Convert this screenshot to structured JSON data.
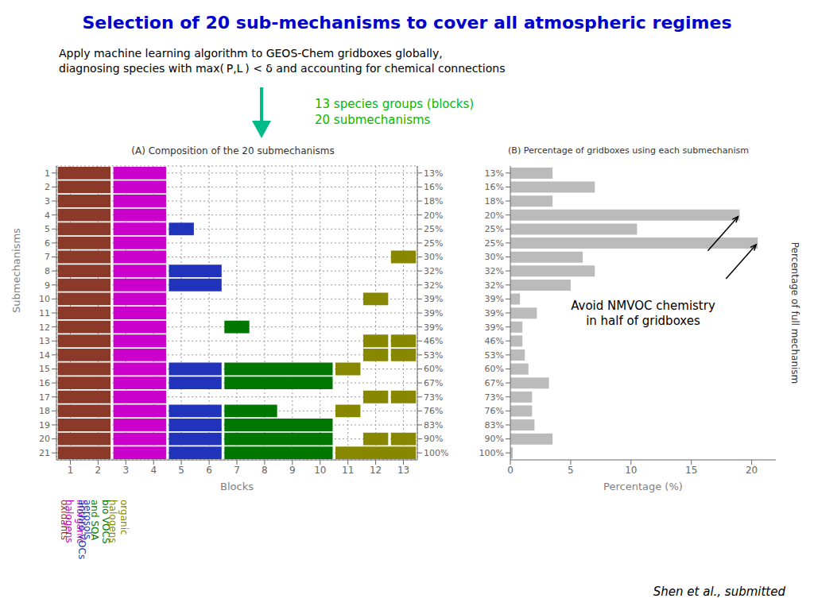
{
  "title": "Selection of 20 sub-mechanisms to cover all atmospheric regimes",
  "title_color": "#0000CC",
  "subtitle": "Apply machine learning algorithm to GEOS-Chem gridboxes globally,\ndiagnosing species with max( P,L ) < δ and accounting for chemical connections",
  "annotations": [
    {
      "text": "13 species groups (blocks)\n20 submechanisms",
      "color": "#00BB00",
      "arrow_color": "#00BB88"
    }
  ],
  "citation": "Shen et al., submitted",
  "chart_data": [
    {
      "type": "matrix",
      "title": "(A) Composition of the 20 submechanisms",
      "xlabel": "Blocks",
      "ylabel": "Submechanisms",
      "xlim": [
        0.5,
        13.5
      ],
      "xticks": [
        1,
        2,
        3,
        4,
        5,
        6,
        7,
        8,
        9,
        10,
        11,
        12,
        13
      ],
      "ylim": [
        0.5,
        21.5
      ],
      "yticks": [
        1,
        2,
        3,
        4,
        5,
        6,
        7,
        8,
        9,
        10,
        11,
        12,
        13,
        14,
        15,
        16,
        17,
        18,
        19,
        20,
        21
      ],
      "y2_categories": [
        "13%",
        "16%",
        "18%",
        "20%",
        "25%",
        "25%",
        "30%",
        "32%",
        "32%",
        "39%",
        "39%",
        "39%",
        "46%",
        "53%",
        "60%",
        "67%",
        "73%",
        "76%",
        "83%",
        "90%",
        "100%"
      ],
      "grid": true,
      "groups": [
        {
          "label": "oxidants",
          "blocks": [
            1,
            2
          ],
          "color": "#8B3A2A"
        },
        {
          "label": "inorganic\nhalogens",
          "blocks": [
            3,
            4
          ],
          "color": "#CC00CC"
        },
        {
          "label": "anthro VOCs",
          "blocks": [
            5
          ],
          "color": "#2233BB"
        },
        {
          "label": "aerosols",
          "blocks": [
            6
          ],
          "color": "#2233BB"
        },
        {
          "label": "bio VOCS\nand SOA",
          "blocks": [
            7,
            8,
            9,
            10
          ],
          "color": "#007700"
        },
        {
          "label": "organic\nhalogens",
          "blocks": [
            11,
            12,
            13
          ],
          "color": "#888800"
        }
      ],
      "rows": [
        [
          [
            1,
            2
          ],
          [
            3,
            4
          ]
        ],
        [
          [
            1,
            2
          ],
          [
            3,
            4
          ]
        ],
        [
          [
            1,
            2
          ],
          [
            3,
            4
          ]
        ],
        [
          [
            1,
            2
          ],
          [
            3,
            4
          ]
        ],
        [
          [
            1,
            2
          ],
          [
            3,
            4
          ],
          [
            5
          ]
        ],
        [
          [
            1,
            2
          ],
          [
            3,
            4
          ]
        ],
        [
          [
            1,
            2
          ],
          [
            3,
            4
          ],
          [
            13
          ]
        ],
        [
          [
            1,
            2
          ],
          [
            3,
            4
          ],
          [
            5,
            6
          ]
        ],
        [
          [
            1,
            2
          ],
          [
            3,
            4
          ],
          [
            5,
            6
          ]
        ],
        [
          [
            1,
            2
          ],
          [
            3,
            4
          ],
          [
            12
          ]
        ],
        [
          [
            1,
            2
          ],
          [
            3,
            4
          ]
        ],
        [
          [
            1,
            2
          ],
          [
            3,
            4
          ],
          [
            7
          ]
        ],
        [
          [
            1,
            2
          ],
          [
            3,
            4
          ],
          [
            12
          ],
          [
            13
          ]
        ],
        [
          [
            1,
            2
          ],
          [
            3,
            4
          ],
          [
            12
          ],
          [
            13
          ]
        ],
        [
          [
            1,
            2
          ],
          [
            3,
            4
          ],
          [
            5,
            6
          ],
          [
            7,
            8,
            9,
            10
          ],
          [
            11
          ]
        ],
        [
          [
            1,
            2
          ],
          [
            3,
            4
          ],
          [
            5,
            6
          ],
          [
            7,
            8,
            9,
            10
          ]
        ],
        [
          [
            1,
            2
          ],
          [
            3,
            4
          ],
          [
            12
          ],
          [
            13
          ]
        ],
        [
          [
            1,
            2
          ],
          [
            3,
            4
          ],
          [
            5,
            6
          ],
          [
            7,
            8
          ],
          [
            11
          ]
        ],
        [
          [
            1,
            2
          ],
          [
            3,
            4
          ],
          [
            5,
            6
          ],
          [
            7,
            8,
            9,
            10
          ]
        ],
        [
          [
            1,
            2
          ],
          [
            3,
            4
          ],
          [
            5,
            6
          ],
          [
            7,
            8,
            9,
            10
          ],
          [
            12
          ],
          [
            13
          ]
        ],
        [
          [
            1,
            2
          ],
          [
            3,
            4
          ],
          [
            5,
            6
          ],
          [
            7,
            8,
            9,
            10
          ],
          [
            11,
            12,
            13
          ]
        ]
      ]
    },
    {
      "type": "bar",
      "orientation": "horizontal",
      "title": "(B) Percentage of gridboxes using each submechanism",
      "xlabel": "Percentage (%)",
      "ylabel": "Percentage of full mechanism",
      "categories": [
        "13%",
        "16%",
        "18%",
        "20%",
        "25%",
        "25%",
        "30%",
        "32%",
        "32%",
        "39%",
        "39%",
        "39%",
        "46%",
        "53%",
        "60%",
        "67%",
        "73%",
        "76%",
        "83%",
        "90%",
        "100%"
      ],
      "values": [
        3.5,
        7.0,
        3.5,
        19.0,
        10.5,
        20.5,
        6.0,
        7.0,
        5.0,
        0.8,
        2.2,
        1.0,
        1.0,
        1.2,
        1.5,
        3.2,
        1.8,
        1.8,
        2.0,
        3.5,
        0.2
      ],
      "color": "#BBBBBB",
      "xlim": [
        0,
        22
      ],
      "xticks": [
        0,
        5,
        10,
        15,
        20
      ],
      "grid": false,
      "annotations": [
        {
          "text": "Avoid NMVOC chemistry\nin half of gridboxes",
          "targets": [
            3,
            5
          ]
        }
      ]
    }
  ]
}
